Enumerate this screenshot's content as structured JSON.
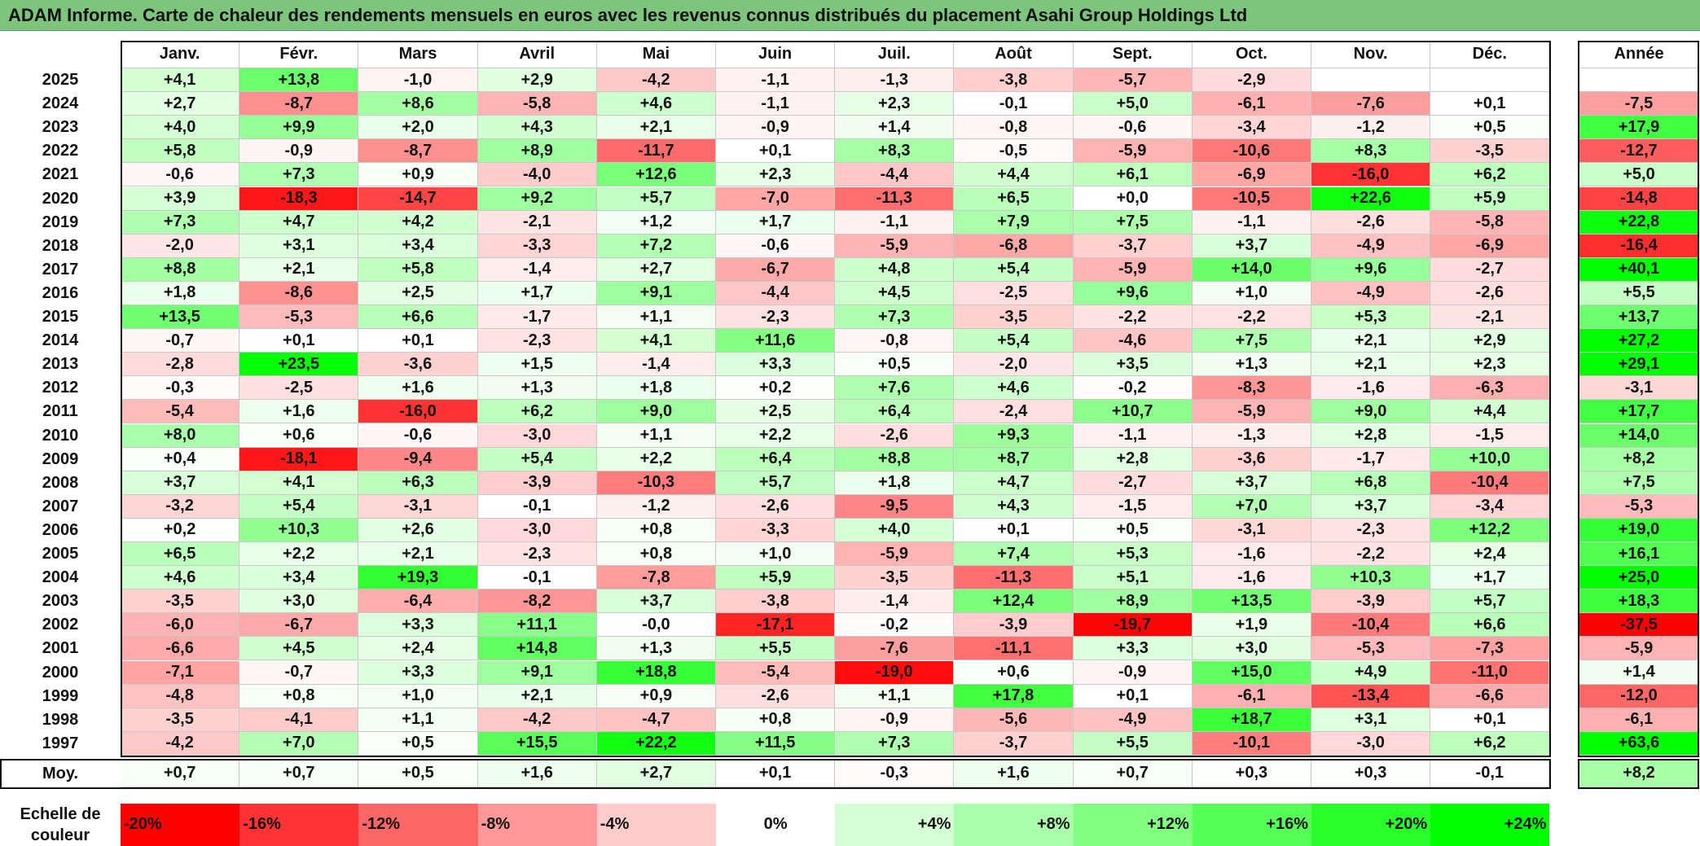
{
  "title": "ADAM Informe. Carte de chaleur des rendements mensuels en euros avec les revenus connus distribués du placement Asahi Group Holdings Ltd",
  "chart_data": {
    "type": "heatmap",
    "title": "ADAM Informe. Carte de chaleur des rendements mensuels en euros avec les revenus connus distribués du placement Asahi Group Holdings Ltd",
    "months": [
      "Janv.",
      "Févr.",
      "Mars",
      "Avril",
      "Mai",
      "Juin",
      "Juil.",
      "Août",
      "Sept.",
      "Oct.",
      "Nov.",
      "Déc."
    ],
    "annual_header": "Année",
    "rows": [
      {
        "year": "2025",
        "values": [
          "+4,1",
          "+13,8",
          "-1,0",
          "+2,9",
          "-4,2",
          "-1,1",
          "-1,3",
          "-3,8",
          "-5,7",
          "-2,9",
          "",
          ""
        ],
        "annual": ""
      },
      {
        "year": "2024",
        "values": [
          "+2,7",
          "-8,7",
          "+8,6",
          "-5,8",
          "+4,6",
          "-1,1",
          "+2,3",
          "-0,1",
          "+5,0",
          "-6,1",
          "-7,6",
          "+0,1"
        ],
        "annual": "-7,5"
      },
      {
        "year": "2023",
        "values": [
          "+4,0",
          "+9,9",
          "+2,0",
          "+4,3",
          "+2,1",
          "-0,9",
          "+1,4",
          "-0,8",
          "-0,6",
          "-3,4",
          "-1,2",
          "+0,5"
        ],
        "annual": "+17,9"
      },
      {
        "year": "2022",
        "values": [
          "+5,8",
          "-0,9",
          "-8,7",
          "+8,9",
          "-11,7",
          "+0,1",
          "+8,3",
          "-0,5",
          "-5,9",
          "-10,6",
          "+8,3",
          "-3,5"
        ],
        "annual": "-12,7"
      },
      {
        "year": "2021",
        "values": [
          "-0,6",
          "+7,3",
          "+0,9",
          "-4,0",
          "+12,6",
          "+2,3",
          "-4,4",
          "+4,4",
          "+6,1",
          "-6,9",
          "-16,0",
          "+6,2"
        ],
        "annual": "+5,0"
      },
      {
        "year": "2020",
        "values": [
          "+3,9",
          "-18,3",
          "-14,7",
          "+9,2",
          "+5,7",
          "-7,0",
          "-11,3",
          "+6,5",
          "+0,0",
          "-10,5",
          "+22,6",
          "+5,9"
        ],
        "annual": "-14,8"
      },
      {
        "year": "2019",
        "values": [
          "+7,3",
          "+4,7",
          "+4,2",
          "-2,1",
          "+1,2",
          "+1,7",
          "-1,1",
          "+7,9",
          "+7,5",
          "-1,1",
          "-2,6",
          "-5,8"
        ],
        "annual": "+22,8"
      },
      {
        "year": "2018",
        "values": [
          "-2,0",
          "+3,1",
          "+3,4",
          "-3,3",
          "+7,2",
          "-0,6",
          "-5,9",
          "-6,8",
          "-3,7",
          "+3,7",
          "-4,9",
          "-6,9"
        ],
        "annual": "-16,4"
      },
      {
        "year": "2017",
        "values": [
          "+8,8",
          "+2,1",
          "+5,8",
          "-1,4",
          "+2,7",
          "-6,7",
          "+4,8",
          "+5,4",
          "-5,9",
          "+14,0",
          "+9,6",
          "-2,7"
        ],
        "annual": "+40,1"
      },
      {
        "year": "2016",
        "values": [
          "+1,8",
          "-8,6",
          "+2,5",
          "+1,7",
          "+9,1",
          "-4,4",
          "+4,5",
          "-2,5",
          "+9,6",
          "+1,0",
          "-4,9",
          "-2,6"
        ],
        "annual": "+5,5"
      },
      {
        "year": "2015",
        "values": [
          "+13,5",
          "-5,3",
          "+6,6",
          "-1,7",
          "+1,1",
          "-2,3",
          "+7,3",
          "-3,5",
          "-2,2",
          "-2,2",
          "+5,3",
          "-2,1"
        ],
        "annual": "+13,7"
      },
      {
        "year": "2014",
        "values": [
          "-0,7",
          "+0,1",
          "+0,1",
          "-2,3",
          "+4,1",
          "+11,6",
          "-0,8",
          "+5,4",
          "-4,6",
          "+7,5",
          "+2,1",
          "+2,9"
        ],
        "annual": "+27,2"
      },
      {
        "year": "2013",
        "values": [
          "-2,8",
          "+23,5",
          "-3,6",
          "+1,5",
          "-1,4",
          "+3,3",
          "+0,5",
          "-2,0",
          "+3,5",
          "+1,3",
          "+2,1",
          "+2,3"
        ],
        "annual": "+29,1"
      },
      {
        "year": "2012",
        "values": [
          "-0,3",
          "-2,5",
          "+1,6",
          "+1,3",
          "+1,8",
          "+0,2",
          "+7,6",
          "+4,6",
          "-0,2",
          "-8,3",
          "-1,6",
          "-6,3"
        ],
        "annual": "-3,1"
      },
      {
        "year": "2011",
        "values": [
          "-5,4",
          "+1,6",
          "-16,0",
          "+6,2",
          "+9,0",
          "+2,5",
          "+6,4",
          "-2,4",
          "+10,7",
          "-5,9",
          "+9,0",
          "+4,4"
        ],
        "annual": "+17,7"
      },
      {
        "year": "2010",
        "values": [
          "+8,0",
          "+0,6",
          "-0,6",
          "-3,0",
          "+1,1",
          "+2,2",
          "-2,6",
          "+9,3",
          "-1,1",
          "-1,3",
          "+2,8",
          "-1,5"
        ],
        "annual": "+14,0"
      },
      {
        "year": "2009",
        "values": [
          "+0,4",
          "-18,1",
          "-9,4",
          "+5,4",
          "+2,2",
          "+6,4",
          "+8,8",
          "+8,7",
          "+2,8",
          "-3,6",
          "-1,7",
          "+10,0"
        ],
        "annual": "+8,2"
      },
      {
        "year": "2008",
        "values": [
          "+3,7",
          "+4,1",
          "+6,3",
          "-3,9",
          "-10,3",
          "+5,7",
          "+1,8",
          "+4,7",
          "-2,7",
          "+3,7",
          "+6,8",
          "-10,4"
        ],
        "annual": "+7,5"
      },
      {
        "year": "2007",
        "values": [
          "-3,2",
          "+5,4",
          "-3,1",
          "-0,1",
          "-1,2",
          "-2,6",
          "-9,5",
          "+4,3",
          "-1,5",
          "+7,0",
          "+3,7",
          "-3,4"
        ],
        "annual": "-5,3"
      },
      {
        "year": "2006",
        "values": [
          "+0,2",
          "+10,3",
          "+2,6",
          "-3,0",
          "+0,8",
          "-3,3",
          "+4,0",
          "+0,1",
          "+0,5",
          "-3,1",
          "-2,3",
          "+12,2"
        ],
        "annual": "+19,0"
      },
      {
        "year": "2005",
        "values": [
          "+6,5",
          "+2,2",
          "+2,1",
          "-2,3",
          "+0,8",
          "+1,0",
          "-5,9",
          "+7,4",
          "+5,3",
          "-1,6",
          "-2,2",
          "+2,4"
        ],
        "annual": "+16,1"
      },
      {
        "year": "2004",
        "values": [
          "+4,6",
          "+3,4",
          "+19,3",
          "-0,1",
          "-7,8",
          "+5,9",
          "-3,5",
          "-11,3",
          "+5,1",
          "-1,6",
          "+10,3",
          "+1,7"
        ],
        "annual": "+25,0"
      },
      {
        "year": "2003",
        "values": [
          "-3,5",
          "+3,0",
          "-6,4",
          "-8,2",
          "+3,7",
          "-3,8",
          "-1,4",
          "+12,4",
          "+8,9",
          "+13,5",
          "-3,9",
          "+5,7"
        ],
        "annual": "+18,3"
      },
      {
        "year": "2002",
        "values": [
          "-6,0",
          "-6,7",
          "+3,3",
          "+11,1",
          "-0,0",
          "-17,1",
          "-0,2",
          "-3,9",
          "-19,7",
          "+1,9",
          "-10,4",
          "+6,6"
        ],
        "annual": "-37,5"
      },
      {
        "year": "2001",
        "values": [
          "-6,6",
          "+4,5",
          "+2,4",
          "+14,8",
          "+1,3",
          "+5,5",
          "-7,6",
          "-11,1",
          "+3,3",
          "+3,0",
          "-5,3",
          "-7,3"
        ],
        "annual": "-5,9"
      },
      {
        "year": "2000",
        "values": [
          "-7,1",
          "-0,7",
          "+3,3",
          "+9,1",
          "+18,8",
          "-5,4",
          "-19,0",
          "+0,6",
          "-0,9",
          "+15,0",
          "+4,9",
          "-11,0"
        ],
        "annual": "+1,4"
      },
      {
        "year": "1999",
        "values": [
          "-4,8",
          "+0,8",
          "+1,0",
          "+2,1",
          "+0,9",
          "-2,6",
          "+1,1",
          "+17,8",
          "+0,1",
          "-6,1",
          "-13,4",
          "-6,6"
        ],
        "annual": "-12,0"
      },
      {
        "year": "1998",
        "values": [
          "-3,5",
          "-4,1",
          "+1,1",
          "-4,2",
          "-4,7",
          "+0,8",
          "-0,9",
          "-5,6",
          "-4,9",
          "+18,7",
          "+3,1",
          "+0,1"
        ],
        "annual": "-6,1"
      },
      {
        "year": "1997",
        "values": [
          "-4,2",
          "+7,0",
          "+0,5",
          "+15,5",
          "+22,2",
          "+11,5",
          "+7,3",
          "-3,7",
          "+5,5",
          "-10,1",
          "-3,0",
          "+6,2"
        ],
        "annual": "+63,6"
      }
    ],
    "average": {
      "label": "Moy.",
      "values": [
        "+0,7",
        "+0,7",
        "+0,5",
        "+1,6",
        "+2,7",
        "+0,1",
        "-0,3",
        "+1,6",
        "+0,7",
        "+0,3",
        "+0,3",
        "-0,1"
      ],
      "annual": "+8,2"
    },
    "scale": {
      "label": "Echelle de couleur",
      "steps": [
        {
          "label": "-20%",
          "value": -20,
          "align": "left"
        },
        {
          "label": "-16%",
          "value": -16,
          "align": "left"
        },
        {
          "label": "-12%",
          "value": -12,
          "align": "left"
        },
        {
          "label": "-8%",
          "value": -8,
          "align": "left"
        },
        {
          "label": "-4%",
          "value": -4,
          "align": "left"
        },
        {
          "label": "0%",
          "value": 0,
          "align": "center"
        },
        {
          "label": "+4%",
          "value": 4,
          "align": "right"
        },
        {
          "label": "+8%",
          "value": 8,
          "align": "right"
        },
        {
          "label": "+12%",
          "value": 12,
          "align": "right"
        },
        {
          "label": "+16%",
          "value": 16,
          "align": "right"
        },
        {
          "label": "+20%",
          "value": 20,
          "align": "right"
        },
        {
          "label": "+24%",
          "value": 24,
          "align": "right"
        }
      ]
    },
    "colors": {
      "negative_max": "#ff0000",
      "neutral": "#ffffff",
      "positive_max": "#00ff00",
      "title_bar": "#7dc47d"
    }
  }
}
